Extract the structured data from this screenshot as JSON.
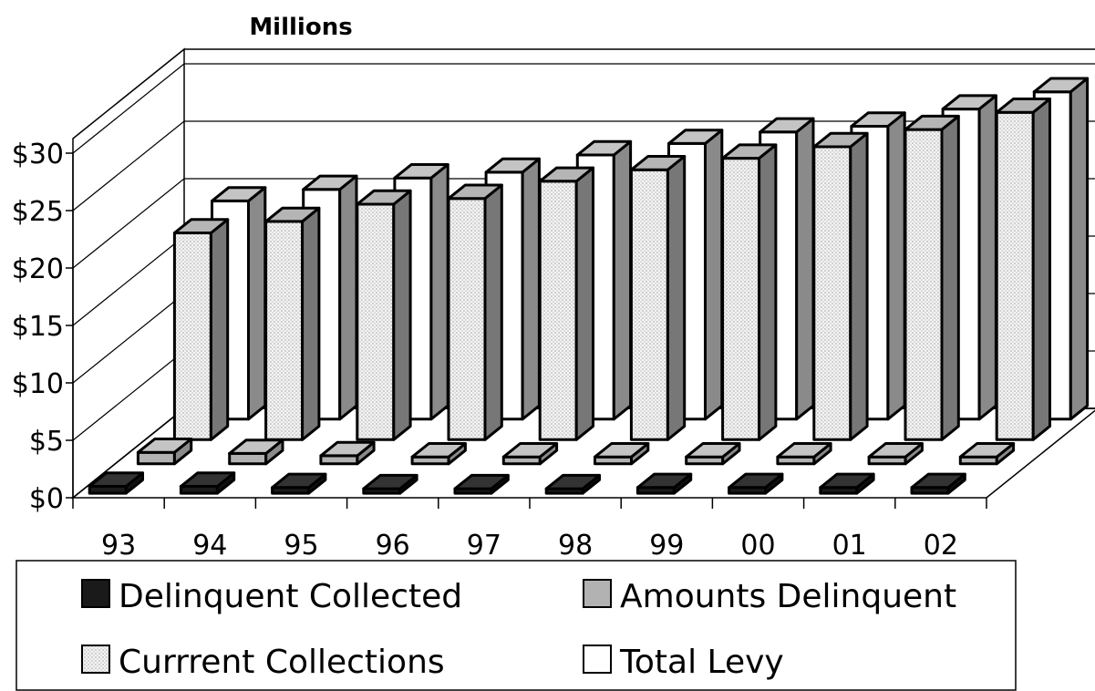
{
  "chart_data": {
    "type": "bar",
    "title": "Millions",
    "categories": [
      "93",
      "94",
      "95",
      "96",
      "97",
      "98",
      "99",
      "00",
      "01",
      "02"
    ],
    "yticks": [
      "$0",
      "$5",
      "$10",
      "$15",
      "$20",
      "$25",
      "$30"
    ],
    "ylim": [
      0,
      30
    ],
    "grid": true,
    "legend_position": "bottom",
    "series": [
      {
        "name": "Delinquent Collected",
        "values": [
          0.6,
          0.6,
          0.5,
          0.4,
          0.4,
          0.4,
          0.5,
          0.5,
          0.5,
          0.5
        ],
        "color": "#1a1a1a"
      },
      {
        "name": "Amounts Delinquent",
        "values": [
          1.0,
          0.9,
          0.7,
          0.6,
          0.6,
          0.6,
          0.6,
          0.6,
          0.6,
          0.6
        ],
        "color": "#b2b2b2"
      },
      {
        "name": "Currrent Collections",
        "values": [
          18.0,
          19.0,
          20.5,
          21.0,
          22.5,
          23.5,
          24.5,
          25.5,
          27.0,
          28.5
        ],
        "color": "#f0f0f0"
      },
      {
        "name": "Total Levy",
        "values": [
          19.0,
          20.0,
          21.0,
          21.5,
          23.0,
          24.0,
          25.0,
          25.5,
          27.0,
          28.5
        ],
        "color": "#ffffff"
      }
    ]
  }
}
